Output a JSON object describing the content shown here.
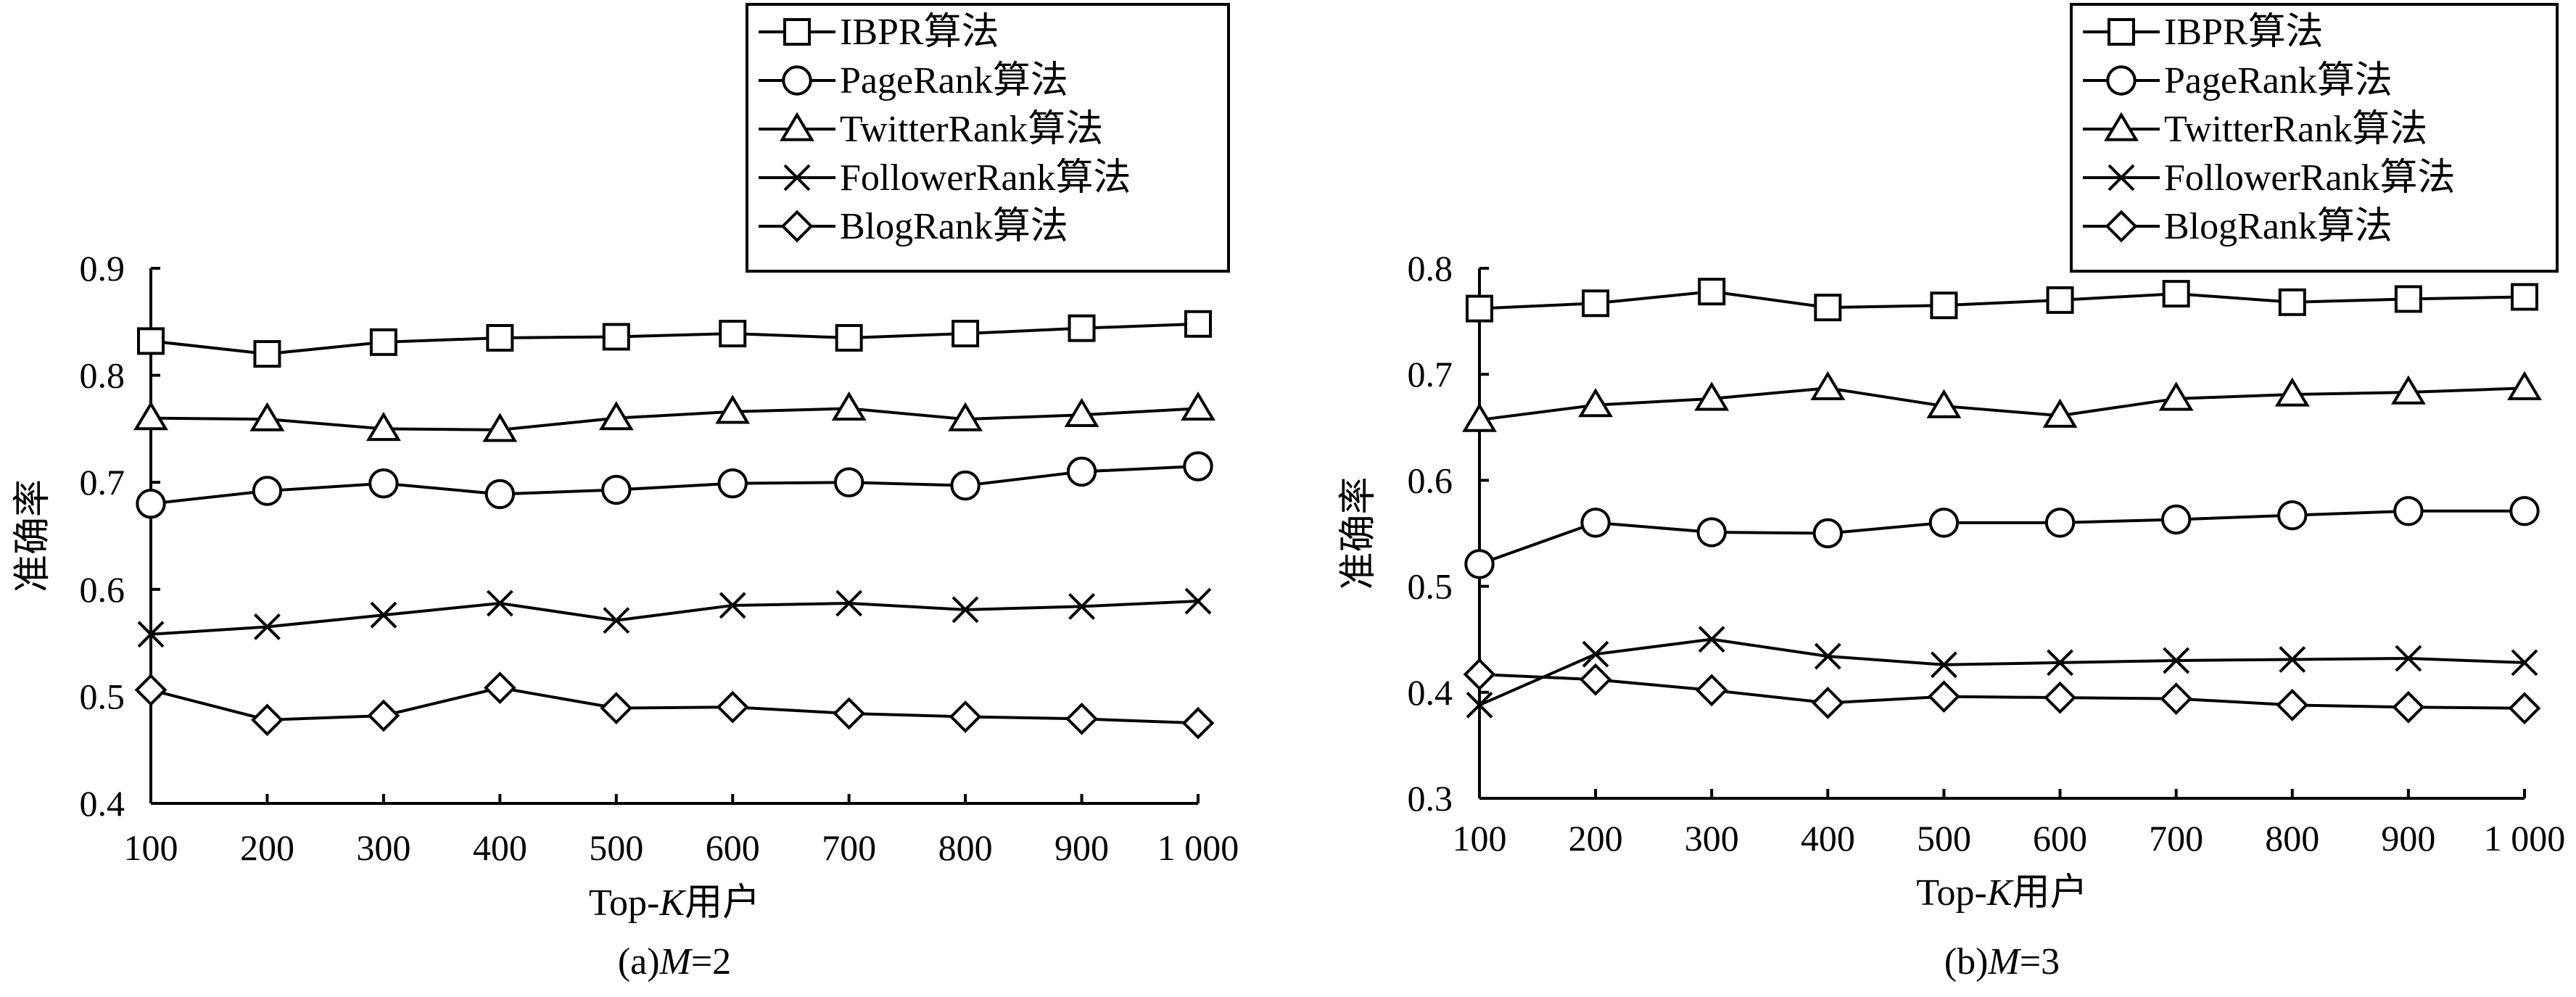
{
  "chart_data": [
    {
      "type": "line",
      "caption": "(a)M=2",
      "caption_prefix": "(a)",
      "caption_var": "M",
      "caption_rest": "=2",
      "xlabel_prefix": "Top-",
      "xlabel_var": "K",
      "xlabel_suffix": "用户",
      "ylabel": "准确率",
      "x": [
        100,
        200,
        300,
        400,
        500,
        600,
        700,
        800,
        900,
        1000
      ],
      "x_tick_labels": [
        "100",
        "200",
        "300",
        "400",
        "500",
        "600",
        "700",
        "800",
        "900",
        "1 000"
      ],
      "ylim": [
        0.4,
        0.9
      ],
      "y_ticks": [
        0.4,
        0.5,
        0.6,
        0.7,
        0.8,
        0.9
      ],
      "y_tick_labels": [
        "0.4",
        "0.5",
        "0.6",
        "0.7",
        "0.8",
        "0.9"
      ],
      "legend_position": "top-right",
      "series": [
        {
          "name": "IBPR算法",
          "marker": "square",
          "values": [
            0.832,
            0.82,
            0.831,
            0.835,
            0.836,
            0.839,
            0.835,
            0.839,
            0.844,
            0.848
          ]
        },
        {
          "name": "PageRank算法",
          "marker": "circle",
          "values": [
            0.68,
            0.692,
            0.699,
            0.689,
            0.693,
            0.699,
            0.7,
            0.697,
            0.71,
            0.715
          ]
        },
        {
          "name": "TwitterRank算法",
          "marker": "triangle",
          "values": [
            0.76,
            0.759,
            0.75,
            0.749,
            0.76,
            0.766,
            0.769,
            0.759,
            0.763,
            0.769
          ]
        },
        {
          "name": "FollowerRank算法",
          "marker": "x",
          "values": [
            0.558,
            0.565,
            0.576,
            0.587,
            0.571,
            0.585,
            0.587,
            0.581,
            0.584,
            0.589
          ]
        },
        {
          "name": "BlogRank算法",
          "marker": "diamond",
          "values": [
            0.506,
            0.478,
            0.482,
            0.508,
            0.489,
            0.49,
            0.484,
            0.481,
            0.479,
            0.475
          ]
        }
      ]
    },
    {
      "type": "line",
      "caption": "(b)M=3",
      "caption_prefix": "(b)",
      "caption_var": "M",
      "caption_rest": "=3",
      "xlabel_prefix": "Top-",
      "xlabel_var": "K",
      "xlabel_suffix": "用户",
      "ylabel": "准确率",
      "x": [
        100,
        200,
        300,
        400,
        500,
        600,
        700,
        800,
        900,
        1000
      ],
      "x_tick_labels": [
        "100",
        "200",
        "300",
        "400",
        "500",
        "600",
        "700",
        "800",
        "900",
        "1 000"
      ],
      "ylim": [
        0.3,
        0.8
      ],
      "y_ticks": [
        0.3,
        0.4,
        0.5,
        0.6,
        0.7,
        0.8
      ],
      "y_tick_labels": [
        "0.3",
        "0.4",
        "0.5",
        "0.6",
        "0.7",
        "0.8"
      ],
      "legend_position": "top-right",
      "series": [
        {
          "name": "IBPR算法",
          "marker": "square",
          "values": [
            0.762,
            0.767,
            0.778,
            0.763,
            0.765,
            0.77,
            0.776,
            0.768,
            0.771,
            0.773
          ]
        },
        {
          "name": "PageRank算法",
          "marker": "circle",
          "values": [
            0.521,
            0.56,
            0.551,
            0.55,
            0.56,
            0.56,
            0.563,
            0.567,
            0.571,
            0.571
          ]
        },
        {
          "name": "TwitterRank算法",
          "marker": "triangle",
          "values": [
            0.657,
            0.671,
            0.677,
            0.687,
            0.67,
            0.661,
            0.677,
            0.681,
            0.683,
            0.687
          ]
        },
        {
          "name": "FollowerRank算法",
          "marker": "x",
          "values": [
            0.388,
            0.436,
            0.45,
            0.434,
            0.426,
            0.428,
            0.43,
            0.431,
            0.432,
            0.428
          ]
        },
        {
          "name": "BlogRank算法",
          "marker": "diamond",
          "values": [
            0.417,
            0.412,
            0.402,
            0.39,
            0.396,
            0.395,
            0.394,
            0.388,
            0.386,
            0.385
          ]
        }
      ]
    }
  ]
}
